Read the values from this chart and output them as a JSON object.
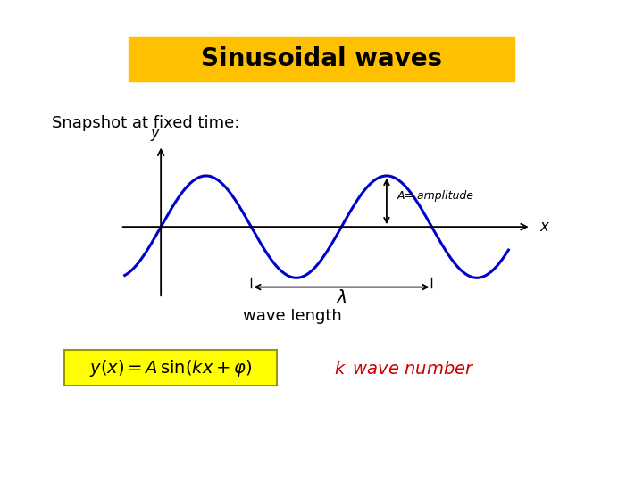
{
  "title": "Sinusoidal waves",
  "title_bg": "#FFC000",
  "title_color": "#000000",
  "title_fontsize": 20,
  "snapshot_text": "Snapshot at fixed time:",
  "snapshot_fontsize": 13,
  "wave_color": "#0000CC",
  "wave_linewidth": 2.2,
  "background_color": "#FFFFFF",
  "formula_bg": "#FFFF00",
  "formula_color": "#000000",
  "formula_red_color": "#CC0000",
  "amplitude_label": "A= amplitude",
  "axis_color": "#000000",
  "arrow_color": "#000000",
  "wave_length_label": "wave length",
  "fig_width": 7.2,
  "fig_height": 5.4,
  "fig_dpi": 100
}
